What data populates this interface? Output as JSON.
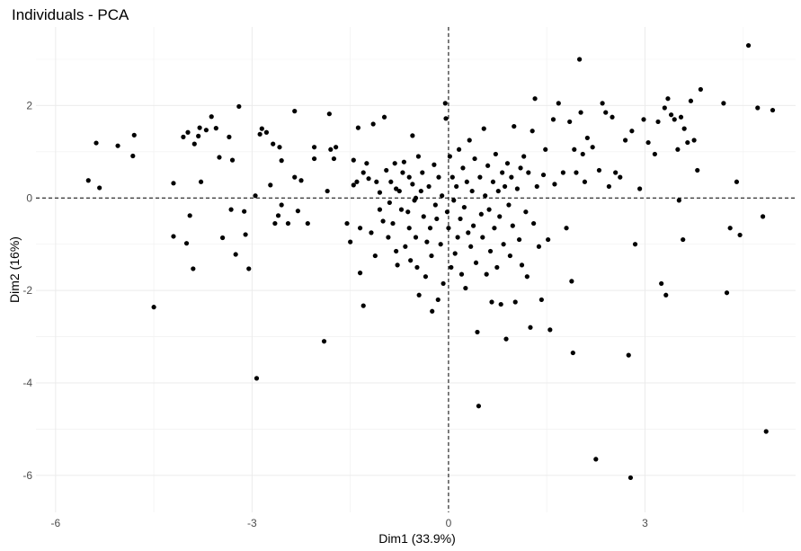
{
  "chart_data": {
    "type": "scatter",
    "title": "Individuals - PCA",
    "xlabel": "Dim1 (33.9%)",
    "ylabel": "Dim2 (16%)",
    "xlim": [
      -6.3,
      5.3
    ],
    "ylim": [
      -6.8,
      3.7
    ],
    "xticks": [
      -6,
      -3,
      0,
      3
    ],
    "yticks": [
      -6,
      -4,
      -2,
      0,
      2
    ],
    "xtick_labels": [
      "-6",
      "-3",
      "0",
      "3"
    ],
    "ytick_labels": [
      "-6",
      "-4",
      "-2",
      "0",
      "2"
    ],
    "reference_lines": {
      "x": 0,
      "y": 0,
      "style": "dashed"
    },
    "grid": true,
    "points": [
      [
        -5.5,
        0.38
      ],
      [
        -5.38,
        1.19
      ],
      [
        -5.33,
        0.22
      ],
      [
        -5.05,
        1.13
      ],
      [
        -4.8,
        1.36
      ],
      [
        -4.82,
        0.91
      ],
      [
        -4.5,
        -2.36
      ],
      [
        -4.2,
        0.32
      ],
      [
        -4.2,
        -0.83
      ],
      [
        -4.05,
        1.32
      ],
      [
        -3.98,
        1.42
      ],
      [
        -4.0,
        -0.98
      ],
      [
        -3.95,
        -0.38
      ],
      [
        -3.9,
        -1.53
      ],
      [
        -3.88,
        1.17
      ],
      [
        -3.82,
        1.34
      ],
      [
        -3.8,
        1.52
      ],
      [
        -3.78,
        0.35
      ],
      [
        -3.7,
        1.47
      ],
      [
        -3.62,
        1.76
      ],
      [
        -3.55,
        1.51
      ],
      [
        -3.5,
        0.88
      ],
      [
        -3.45,
        -0.86
      ],
      [
        -3.35,
        1.32
      ],
      [
        -3.3,
        0.82
      ],
      [
        -3.32,
        -0.25
      ],
      [
        -3.25,
        -1.22
      ],
      [
        -3.2,
        1.98
      ],
      [
        -3.12,
        -0.29
      ],
      [
        -3.1,
        -0.79
      ],
      [
        -3.05,
        -1.53
      ],
      [
        -2.95,
        0.05
      ],
      [
        -2.93,
        -3.9
      ],
      [
        -2.88,
        1.38
      ],
      [
        -2.85,
        1.5
      ],
      [
        -2.78,
        1.42
      ],
      [
        -2.72,
        0.28
      ],
      [
        -2.68,
        1.17
      ],
      [
        -2.65,
        -0.55
      ],
      [
        -2.6,
        -0.38
      ],
      [
        -2.58,
        1.1
      ],
      [
        -2.55,
        0.81
      ],
      [
        -2.55,
        -0.15
      ],
      [
        -2.45,
        -0.55
      ],
      [
        -2.35,
        1.88
      ],
      [
        -2.35,
        0.45
      ],
      [
        -2.3,
        -0.28
      ],
      [
        -2.25,
        0.38
      ],
      [
        -2.15,
        -0.55
      ],
      [
        -2.05,
        0.85
      ],
      [
        -2.05,
        1.1
      ],
      [
        -1.9,
        -3.1
      ],
      [
        -1.85,
        0.15
      ],
      [
        -1.82,
        1.82
      ],
      [
        -1.8,
        1.05
      ],
      [
        -1.75,
        0.85
      ],
      [
        -1.72,
        1.1
      ],
      [
        -1.55,
        -0.55
      ],
      [
        -1.5,
        -0.95
      ],
      [
        -1.45,
        0.28
      ],
      [
        -1.45,
        0.82
      ],
      [
        -1.4,
        0.35
      ],
      [
        -1.38,
        1.52
      ],
      [
        -1.35,
        -0.65
      ],
      [
        -1.35,
        -1.62
      ],
      [
        -1.3,
        -2.33
      ],
      [
        -1.3,
        0.55
      ],
      [
        -1.25,
        0.75
      ],
      [
        -1.22,
        0.42
      ],
      [
        -1.18,
        -0.75
      ],
      [
        -1.15,
        1.6
      ],
      [
        -1.12,
        -1.25
      ],
      [
        -1.1,
        0.35
      ],
      [
        -1.05,
        0.12
      ],
      [
        -1.05,
        -0.25
      ],
      [
        -1.0,
        -0.5
      ],
      [
        -0.98,
        1.75
      ],
      [
        -0.95,
        0.6
      ],
      [
        -0.92,
        -0.85
      ],
      [
        -0.9,
        -0.1
      ],
      [
        -0.88,
        0.35
      ],
      [
        -0.85,
        -0.55
      ],
      [
        -0.82,
        0.75
      ],
      [
        -0.8,
        0.2
      ],
      [
        -0.8,
        -1.15
      ],
      [
        -0.78,
        -1.45
      ],
      [
        -0.75,
        0.15
      ],
      [
        -0.72,
        -0.25
      ],
      [
        -0.7,
        0.55
      ],
      [
        -0.68,
        0.78
      ],
      [
        -0.66,
        -1.05
      ],
      [
        -0.62,
        -0.3
      ],
      [
        -0.6,
        0.45
      ],
      [
        -0.6,
        -0.65
      ],
      [
        -0.58,
        -1.35
      ],
      [
        -0.55,
        1.35
      ],
      [
        -0.55,
        0.3
      ],
      [
        -0.52,
        -0.05
      ],
      [
        -0.5,
        0.0
      ],
      [
        -0.5,
        -0.85
      ],
      [
        -0.48,
        -1.5
      ],
      [
        -0.46,
        0.9
      ],
      [
        -0.45,
        -2.1
      ],
      [
        -0.42,
        0.15
      ],
      [
        -0.4,
        0.55
      ],
      [
        -0.38,
        -0.4
      ],
      [
        -0.35,
        -1.7
      ],
      [
        -0.33,
        -0.95
      ],
      [
        -0.3,
        0.25
      ],
      [
        -0.28,
        -0.65
      ],
      [
        -0.26,
        -1.25
      ],
      [
        -0.25,
        -2.45
      ],
      [
        -0.22,
        0.72
      ],
      [
        -0.2,
        -0.15
      ],
      [
        -0.18,
        -0.45
      ],
      [
        -0.16,
        -2.2
      ],
      [
        -0.15,
        0.45
      ],
      [
        -0.12,
        -1.0
      ],
      [
        -0.1,
        0.05
      ],
      [
        -0.08,
        -1.85
      ],
      [
        -0.05,
        2.05
      ],
      [
        -0.04,
        1.72
      ],
      [
        -0.02,
        -0.3
      ],
      [
        0.0,
        -0.65
      ],
      [
        0.02,
        0.9
      ],
      [
        0.04,
        -1.5
      ],
      [
        0.06,
        0.45
      ],
      [
        0.08,
        -0.05
      ],
      [
        0.1,
        -1.2
      ],
      [
        0.12,
        0.25
      ],
      [
        0.14,
        -0.85
      ],
      [
        0.16,
        1.05
      ],
      [
        0.18,
        -0.45
      ],
      [
        0.2,
        -1.65
      ],
      [
        0.22,
        0.65
      ],
      [
        0.24,
        -0.2
      ],
      [
        0.26,
        -1.95
      ],
      [
        0.28,
        0.35
      ],
      [
        0.3,
        -0.75
      ],
      [
        0.32,
        1.25
      ],
      [
        0.34,
        -1.05
      ],
      [
        0.36,
        0.15
      ],
      [
        0.38,
        -0.6
      ],
      [
        0.4,
        0.85
      ],
      [
        0.42,
        -1.4
      ],
      [
        0.44,
        -2.9
      ],
      [
        0.46,
        -4.5
      ],
      [
        0.48,
        0.45
      ],
      [
        0.5,
        -0.35
      ],
      [
        0.52,
        -0.85
      ],
      [
        0.54,
        1.5
      ],
      [
        0.56,
        0.05
      ],
      [
        0.58,
        -1.65
      ],
      [
        0.6,
        0.7
      ],
      [
        0.62,
        -0.25
      ],
      [
        0.64,
        -1.15
      ],
      [
        0.66,
        -2.25
      ],
      [
        0.68,
        0.35
      ],
      [
        0.7,
        -0.65
      ],
      [
        0.72,
        0.95
      ],
      [
        0.74,
        -1.5
      ],
      [
        0.76,
        0.15
      ],
      [
        0.78,
        -0.4
      ],
      [
        0.8,
        -2.3
      ],
      [
        0.82,
        0.55
      ],
      [
        0.84,
        -1.0
      ],
      [
        0.86,
        0.25
      ],
      [
        0.88,
        -3.05
      ],
      [
        0.9,
        0.75
      ],
      [
        0.92,
        -0.15
      ],
      [
        0.94,
        -1.25
      ],
      [
        0.96,
        0.45
      ],
      [
        0.98,
        -0.6
      ],
      [
        1.0,
        1.55
      ],
      [
        1.02,
        -2.25
      ],
      [
        1.05,
        0.2
      ],
      [
        1.08,
        -0.9
      ],
      [
        1.1,
        0.65
      ],
      [
        1.12,
        -1.45
      ],
      [
        1.15,
        0.9
      ],
      [
        1.18,
        -0.3
      ],
      [
        1.2,
        -1.7
      ],
      [
        1.22,
        0.55
      ],
      [
        1.25,
        -2.8
      ],
      [
        1.28,
        1.45
      ],
      [
        1.3,
        -0.55
      ],
      [
        1.32,
        2.15
      ],
      [
        1.35,
        0.25
      ],
      [
        1.38,
        -1.05
      ],
      [
        1.42,
        -2.2
      ],
      [
        1.45,
        0.5
      ],
      [
        1.48,
        1.05
      ],
      [
        1.52,
        -0.9
      ],
      [
        1.55,
        -2.85
      ],
      [
        1.6,
        1.7
      ],
      [
        1.62,
        0.3
      ],
      [
        1.68,
        2.05
      ],
      [
        1.75,
        0.55
      ],
      [
        1.8,
        -0.65
      ],
      [
        1.85,
        1.65
      ],
      [
        1.88,
        -1.8
      ],
      [
        1.9,
        -3.35
      ],
      [
        1.92,
        1.05
      ],
      [
        1.95,
        0.55
      ],
      [
        2.0,
        3.0
      ],
      [
        2.02,
        1.85
      ],
      [
        2.05,
        0.95
      ],
      [
        2.08,
        0.35
      ],
      [
        2.12,
        1.3
      ],
      [
        2.2,
        1.1
      ],
      [
        2.25,
        -5.65
      ],
      [
        2.3,
        0.6
      ],
      [
        2.35,
        2.05
      ],
      [
        2.4,
        1.85
      ],
      [
        2.45,
        0.25
      ],
      [
        2.5,
        1.75
      ],
      [
        2.55,
        0.55
      ],
      [
        2.62,
        0.45
      ],
      [
        2.7,
        1.25
      ],
      [
        2.75,
        -3.4
      ],
      [
        2.78,
        -6.05
      ],
      [
        2.8,
        1.45
      ],
      [
        2.85,
        -1.0
      ],
      [
        2.92,
        0.2
      ],
      [
        2.98,
        1.7
      ],
      [
        3.05,
        1.2
      ],
      [
        3.15,
        0.95
      ],
      [
        3.2,
        1.65
      ],
      [
        3.25,
        -1.85
      ],
      [
        3.3,
        1.95
      ],
      [
        3.32,
        -2.1
      ],
      [
        3.35,
        2.15
      ],
      [
        3.4,
        1.8
      ],
      [
        3.45,
        1.7
      ],
      [
        3.5,
        1.05
      ],
      [
        3.52,
        -0.05
      ],
      [
        3.55,
        1.75
      ],
      [
        3.58,
        -0.9
      ],
      [
        3.6,
        1.5
      ],
      [
        3.65,
        1.2
      ],
      [
        3.7,
        2.1
      ],
      [
        3.75,
        1.25
      ],
      [
        3.8,
        0.6
      ],
      [
        3.85,
        2.35
      ],
      [
        4.2,
        2.05
      ],
      [
        4.25,
        -2.05
      ],
      [
        4.3,
        -0.65
      ],
      [
        4.4,
        0.35
      ],
      [
        4.45,
        -0.8
      ],
      [
        4.58,
        3.3
      ],
      [
        4.72,
        1.95
      ],
      [
        4.8,
        -0.4
      ],
      [
        4.85,
        -5.05
      ],
      [
        4.95,
        1.9
      ]
    ]
  }
}
